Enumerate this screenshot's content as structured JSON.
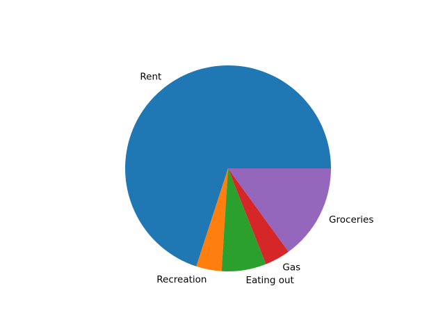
{
  "chart_data": {
    "type": "pie",
    "title": "",
    "categories": [
      "Rent",
      "Recreation",
      "Eating out",
      "Gas",
      "Groceries"
    ],
    "values": [
      70.0,
      4.0,
      7.0,
      4.0,
      15.0
    ],
    "colors": [
      "#1f77b4",
      "#ff7f0e",
      "#2ca02c",
      "#d62728",
      "#9467bd"
    ],
    "start_angle_deg": 0,
    "direction": "counterclockwise",
    "legend": "none"
  }
}
